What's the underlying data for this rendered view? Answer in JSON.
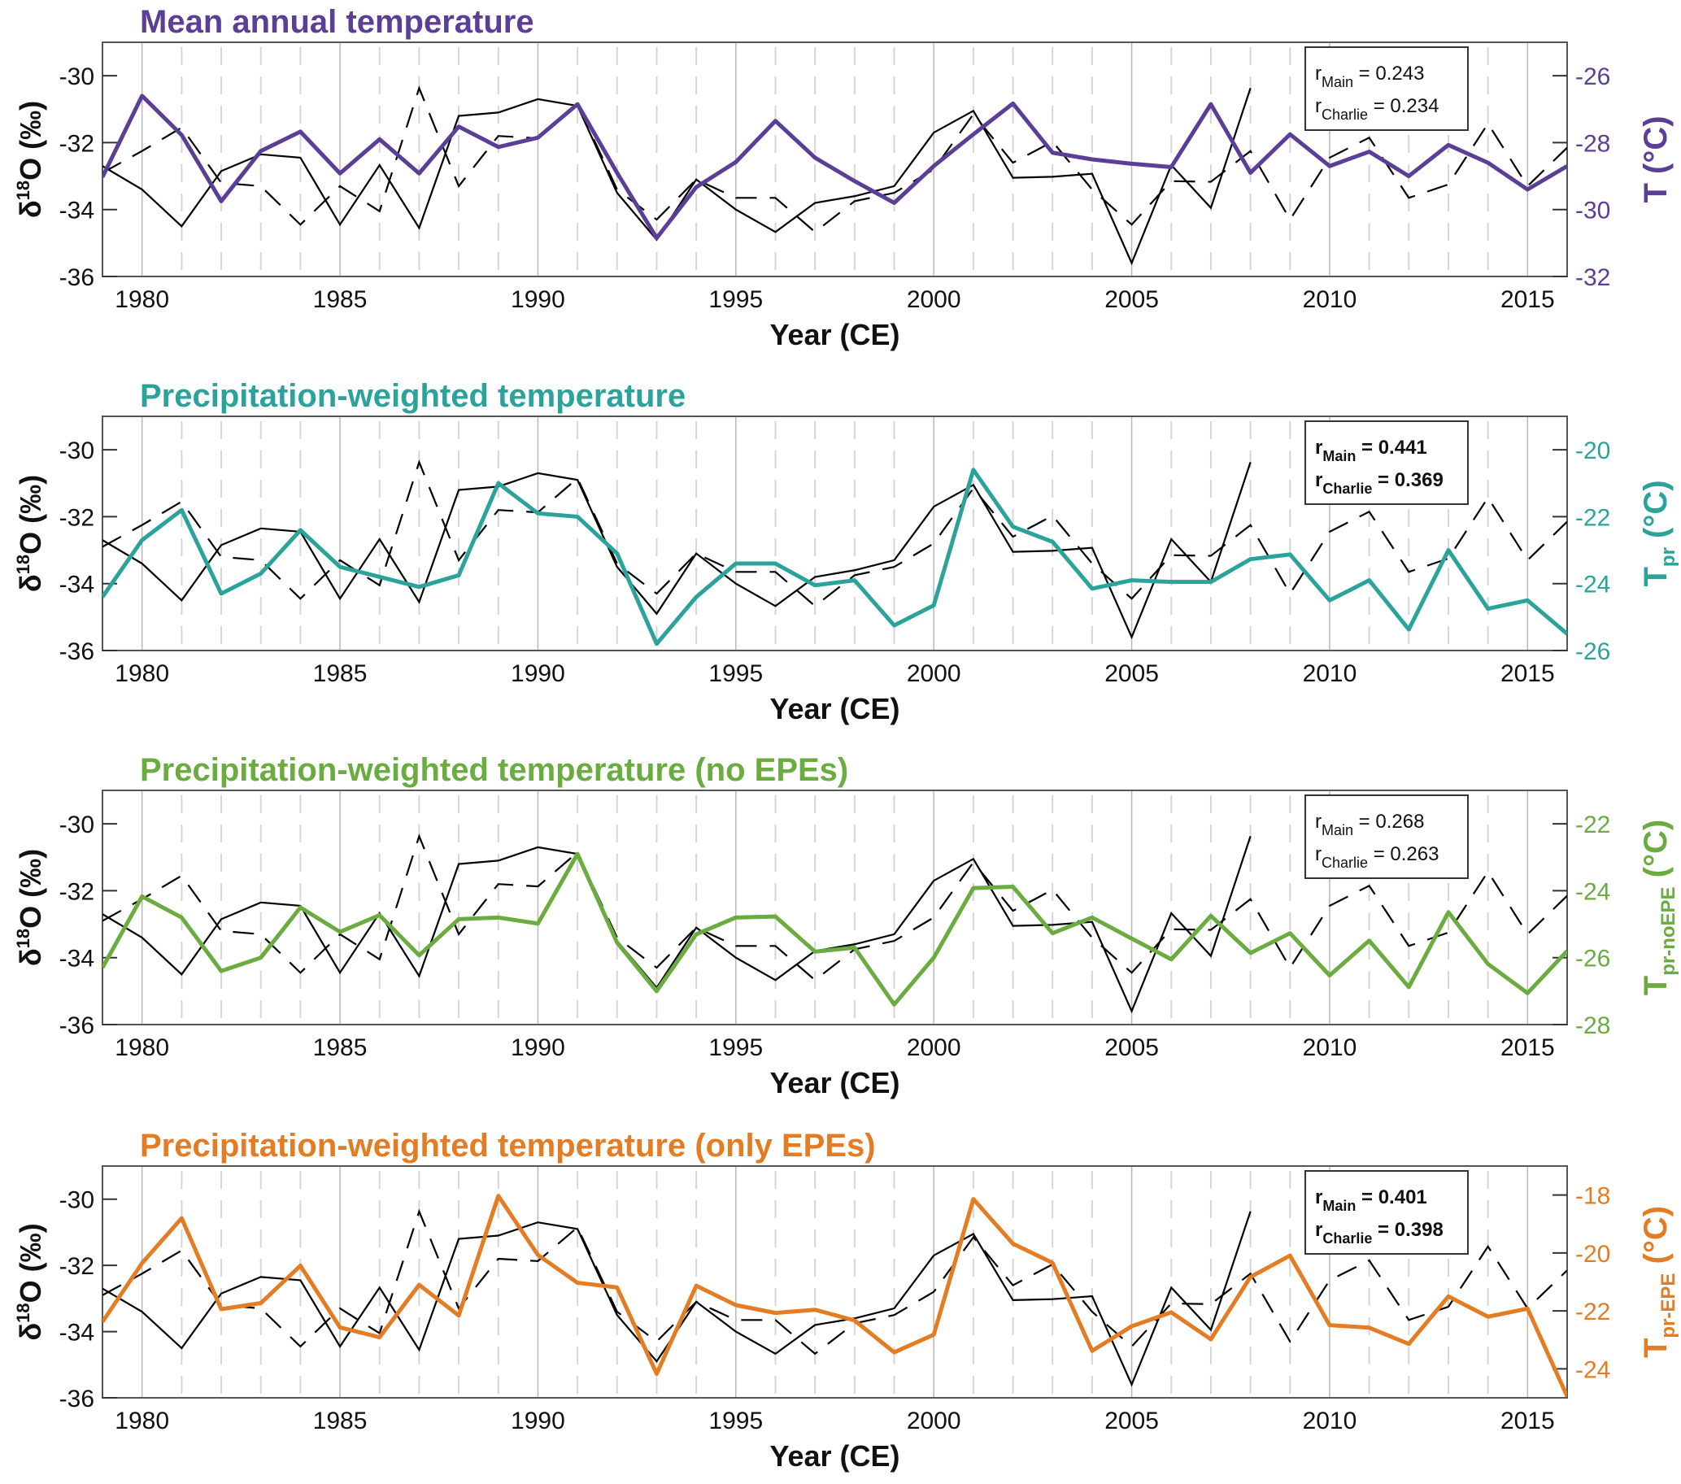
{
  "figure": {
    "xlabel": "Year (CE)",
    "left_ylabel_main": "δ",
    "left_ylabel_sup": "18",
    "left_ylabel_rest": "O (‰)"
  },
  "chart_data": [
    {
      "type": "line",
      "title": "Mean annual temperature",
      "color": "#5b3e96",
      "xlabel": "Year (CE)",
      "ylabel": "δ18O (‰)",
      "y2label": {
        "main": "T",
        "sub": "",
        "unit": "(°C)"
      },
      "xlim": [
        1979,
        2016
      ],
      "ylim": [
        -36,
        -29
      ],
      "y2lim": [
        -32,
        -25
      ],
      "xticks": [
        1980,
        1985,
        1990,
        1995,
        2000,
        2005,
        2010,
        2015
      ],
      "yticks": [
        -30,
        -32,
        -34,
        -36
      ],
      "y2ticks": [
        -26,
        -28,
        -30,
        -32
      ],
      "grid": "vertical (solid at 5-yr ticks, dashed at yearly)",
      "correlation": {
        "bold": false,
        "r_main_label": "r",
        "r_main_sub": "Main",
        "r_main_value": "= 0.243",
        "r_charlie_label": "r",
        "r_charlie_sub": "Charlie",
        "r_charlie_value": "= 0.234"
      },
      "x": [
        1979,
        1980,
        1981,
        1982,
        1983,
        1984,
        1985,
        1986,
        1987,
        1988,
        1989,
        1990,
        1991,
        1992,
        1993,
        1994,
        1995,
        1996,
        1997,
        1998,
        1999,
        2000,
        2001,
        2002,
        2003,
        2004,
        2005,
        2006,
        2007,
        2008,
        2009,
        2010,
        2011,
        2012,
        2013,
        2014,
        2015,
        2016
      ],
      "series": [
        {
          "name": "Temperature",
          "axis": "right",
          "values": [
            -29.03,
            -26.6,
            -27.77,
            -29.75,
            -28.25,
            -27.67,
            -28.92,
            -27.9,
            -28.92,
            -27.52,
            -28.13,
            -27.85,
            -26.85,
            -28.9,
            -30.85,
            -29.33,
            -28.58,
            -27.35,
            -28.45,
            -29.15,
            -29.8,
            -28.7,
            -27.75,
            -26.83,
            -28.3,
            -28.5,
            -28.63,
            -28.73,
            -26.85,
            -28.9,
            -27.75,
            -28.7,
            -28.27,
            -29.0,
            -28.07,
            -28.6,
            -29.4,
            -28.7
          ]
        }
      ]
    },
    {
      "type": "line",
      "title": "Precipitation-weighted temperature",
      "color": "#2ba39b",
      "xlabel": "Year (CE)",
      "ylabel": "δ18O (‰)",
      "y2label": {
        "main": "T",
        "sub": "pr",
        "unit": "(°C)"
      },
      "xlim": [
        1979,
        2016
      ],
      "ylim": [
        -36,
        -29
      ],
      "y2lim": [
        -26,
        -19
      ],
      "xticks": [
        1980,
        1985,
        1990,
        1995,
        2000,
        2005,
        2010,
        2015
      ],
      "yticks": [
        -30,
        -32,
        -34,
        -36
      ],
      "y2ticks": [
        -20,
        -22,
        -24,
        -26
      ],
      "correlation": {
        "bold": true,
        "r_main_label": "r",
        "r_main_sub": "Main",
        "r_main_value": "= 0.441",
        "r_charlie_label": "r",
        "r_charlie_sub": "Charlie",
        "r_charlie_value": "= 0.369"
      },
      "x": [
        1979,
        1980,
        1981,
        1982,
        1983,
        1984,
        1985,
        1986,
        1987,
        1988,
        1989,
        1990,
        1991,
        1992,
        1993,
        1994,
        1995,
        1996,
        1997,
        1998,
        1999,
        2000,
        2001,
        2002,
        2003,
        2004,
        2005,
        2006,
        2007,
        2008,
        2009,
        2010,
        2011,
        2012,
        2013,
        2014,
        2015,
        2016
      ],
      "series": [
        {
          "name": "Tpr",
          "axis": "right",
          "values": [
            -24.4,
            -22.7,
            -21.8,
            -24.3,
            -23.7,
            -22.4,
            -23.5,
            -23.8,
            -24.1,
            -23.75,
            -21.0,
            -21.9,
            -22.0,
            -23.1,
            -25.8,
            -24.4,
            -23.4,
            -23.4,
            -24.05,
            -23.9,
            -25.25,
            -24.65,
            -20.6,
            -22.3,
            -22.75,
            -24.15,
            -23.9,
            -23.95,
            -23.95,
            -23.27,
            -23.13,
            -24.5,
            -23.9,
            -25.37,
            -23.0,
            -24.75,
            -24.5,
            -25.5
          ]
        }
      ]
    },
    {
      "type": "line",
      "title": "Precipitation-weighted temperature (no EPEs)",
      "color": "#6aac3f",
      "xlabel": "Year (CE)",
      "ylabel": "δ18O (‰)",
      "y2label": {
        "main": "T",
        "sub": "pr-noEPE",
        "unit": "(°C)"
      },
      "xlim": [
        1979,
        2016
      ],
      "ylim": [
        -36,
        -29
      ],
      "y2lim": [
        -28,
        -21
      ],
      "xticks": [
        1980,
        1985,
        1990,
        1995,
        2000,
        2005,
        2010,
        2015
      ],
      "yticks": [
        -30,
        -32,
        -34,
        -36
      ],
      "y2ticks": [
        -22,
        -24,
        -26,
        -28
      ],
      "correlation": {
        "bold": false,
        "r_main_label": "r",
        "r_main_sub": "Main",
        "r_main_value": "= 0.268",
        "r_charlie_label": "r",
        "r_charlie_sub": "Charlie",
        "r_charlie_value": "= 0.263"
      },
      "x": [
        1979,
        1980,
        1981,
        1982,
        1983,
        1984,
        1985,
        1986,
        1987,
        1988,
        1989,
        1990,
        1991,
        1992,
        1993,
        1994,
        1995,
        1996,
        1997,
        1998,
        1999,
        2000,
        2001,
        2002,
        2003,
        2004,
        2005,
        2006,
        2007,
        2008,
        2009,
        2010,
        2011,
        2012,
        2013,
        2014,
        2015,
        2016
      ],
      "series": [
        {
          "name": "Tpr-noEPE",
          "axis": "right",
          "values": [
            -26.3,
            -24.17,
            -24.8,
            -26.4,
            -26.0,
            -24.5,
            -25.23,
            -24.73,
            -25.93,
            -24.85,
            -24.8,
            -24.98,
            -22.9,
            -25.55,
            -27.0,
            -25.3,
            -24.8,
            -24.77,
            -25.82,
            -25.7,
            -27.4,
            -26.0,
            -23.92,
            -23.88,
            -25.27,
            -24.8,
            -25.43,
            -26.05,
            -24.75,
            -25.86,
            -25.27,
            -26.53,
            -25.49,
            -26.88,
            -24.64,
            -26.19,
            -27.06,
            -25.8
          ]
        }
      ]
    },
    {
      "type": "line",
      "title": "Precipitation-weighted temperature (only EPEs)",
      "color": "#e37c22",
      "xlabel": "Year (CE)",
      "ylabel": "δ18O (‰)",
      "y2label": {
        "main": "T",
        "sub": "pr-EPE",
        "unit": "(°C)"
      },
      "xlim": [
        1979,
        2016
      ],
      "ylim": [
        -36,
        -29
      ],
      "y2lim": [
        -25,
        -17
      ],
      "xticks": [
        1980,
        1985,
        1990,
        1995,
        2000,
        2005,
        2010,
        2015
      ],
      "yticks": [
        -30,
        -32,
        -34,
        -36
      ],
      "y2ticks": [
        -18,
        -20,
        -22,
        -24
      ],
      "correlation": {
        "bold": true,
        "r_main_label": "r",
        "r_main_sub": "Main",
        "r_main_value": "= 0.401",
        "r_charlie_label": "r",
        "r_charlie_sub": "Charlie",
        "r_charlie_value": "= 0.398"
      },
      "x": [
        1979,
        1980,
        1981,
        1982,
        1983,
        1984,
        1985,
        1986,
        1987,
        1988,
        1989,
        1990,
        1991,
        1992,
        1993,
        1994,
        1995,
        1996,
        1997,
        1998,
        1999,
        2000,
        2001,
        2002,
        2003,
        2004,
        2005,
        2006,
        2007,
        2008,
        2009,
        2010,
        2011,
        2012,
        2013,
        2014,
        2015,
        2016
      ],
      "series": [
        {
          "name": "Tpr-EPE",
          "axis": "right",
          "values": [
            -22.38,
            -20.35,
            -18.8,
            -21.94,
            -21.73,
            -20.44,
            -22.57,
            -22.91,
            -21.1,
            -22.16,
            -18.03,
            -20.07,
            -21.03,
            -21.19,
            -24.17,
            -21.13,
            -21.8,
            -22.07,
            -21.96,
            -22.33,
            -23.43,
            -22.82,
            -18.14,
            -19.68,
            -20.34,
            -23.38,
            -22.53,
            -22.05,
            -22.98,
            -20.83,
            -20.09,
            -22.49,
            -22.58,
            -23.14,
            -21.5,
            -22.2,
            -21.92,
            -24.95
          ]
        }
      ]
    }
  ],
  "shared_series": {
    "main": {
      "name": "Main (δ18O)",
      "style": "solid",
      "color": "#000000",
      "axis": "left",
      "x": [
        1979,
        1980,
        1981,
        1982,
        1983,
        1984,
        1985,
        1986,
        1987,
        1988,
        1989,
        1990,
        1991,
        1992,
        1993,
        1994,
        1995,
        1996,
        1997,
        1998,
        1999,
        2000,
        2001,
        2002,
        2003,
        2004,
        2005,
        2006,
        2007,
        2008
      ],
      "values": [
        -32.7,
        -33.4,
        -34.5,
        -32.85,
        -32.35,
        -32.45,
        -34.45,
        -32.67,
        -34.55,
        -31.2,
        -31.1,
        -30.7,
        -30.9,
        -33.5,
        -34.9,
        -33.1,
        -34.0,
        -34.67,
        -33.8,
        -33.6,
        -33.3,
        -31.7,
        -31.05,
        -33.05,
        -33.02,
        -32.93,
        -35.6,
        -32.67,
        -33.95,
        -30.37
      ]
    },
    "charlie": {
      "name": "Charlie (δ18O)",
      "style": "dashed",
      "color": "#000000",
      "axis": "left",
      "x": [
        1979,
        1980,
        1981,
        1982,
        1983,
        1984,
        1985,
        1986,
        1987,
        1988,
        1989,
        1990,
        1991,
        1992,
        1993,
        1994,
        1995,
        1996,
        1997,
        1998,
        1999,
        2000,
        2001,
        2002,
        2003,
        2004,
        2005,
        2006,
        2007,
        2008,
        2009,
        2010,
        2011,
        2012,
        2013,
        2014,
        2015,
        2016
      ],
      "values": [
        -32.9,
        -32.25,
        -31.55,
        -33.2,
        -33.3,
        -34.45,
        -33.3,
        -34.05,
        -30.37,
        -33.3,
        -31.8,
        -31.87,
        -30.85,
        -33.4,
        -34.3,
        -33.1,
        -33.65,
        -33.65,
        -34.67,
        -33.75,
        -33.5,
        -32.8,
        -31.15,
        -32.6,
        -31.97,
        -33.4,
        -34.45,
        -33.15,
        -33.17,
        -32.25,
        -34.3,
        -32.45,
        -31.85,
        -33.65,
        -33.25,
        -31.43,
        -33.3,
        -32.15
      ]
    }
  }
}
